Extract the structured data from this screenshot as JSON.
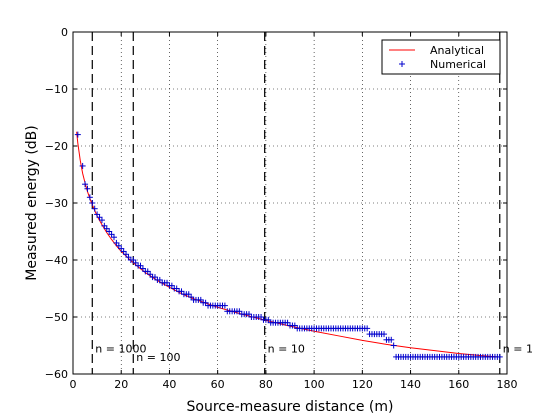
{
  "chart_data": {
    "type": "line",
    "xlabel": "Source-measure distance (m)",
    "ylabel": "Measured energy (dB)",
    "xlim": [
      0,
      180
    ],
    "ylim": [
      -60,
      0
    ],
    "x_ticks": [
      0,
      20,
      40,
      60,
      80,
      100,
      120,
      140,
      160,
      180
    ],
    "y_ticks": [
      0,
      -10,
      -20,
      -30,
      -40,
      -50,
      -60
    ],
    "x_tick_labels": [
      "0",
      "20",
      "40",
      "60",
      "80",
      "100",
      "120",
      "140",
      "160",
      "180"
    ],
    "y_tick_labels": [
      "0",
      "−10",
      "−20",
      "−30",
      "−40",
      "−50",
      "−60"
    ],
    "grid": true,
    "legend_position": "top-right",
    "series": [
      {
        "name": "Analytical",
        "style": "line",
        "color": "#ff0000",
        "x": [
          1.5,
          2,
          3,
          4,
          5,
          6,
          7,
          8,
          10,
          12,
          14,
          16,
          18,
          20,
          25,
          30,
          35,
          40,
          45,
          50,
          60,
          70,
          80,
          90,
          100,
          110,
          120,
          130,
          140,
          150,
          160,
          170,
          176
        ],
        "y": [
          -17.5,
          -19.5,
          -22.5,
          -24.8,
          -26.5,
          -28,
          -29.2,
          -30.3,
          -32.3,
          -33.8,
          -35.2,
          -36.4,
          -37.5,
          -38.5,
          -40.5,
          -42.2,
          -43.6,
          -44.8,
          -45.9,
          -46.8,
          -48.3,
          -49.5,
          -50.6,
          -51.6,
          -52.5,
          -53.3,
          -54.1,
          -54.8,
          -55.4,
          -55.9,
          -56.4,
          -56.8,
          -57
        ]
      },
      {
        "name": "Numerical",
        "style": "marker",
        "marker": "+",
        "color": "#0000cc",
        "x": [
          2,
          4,
          5,
          6,
          7,
          8,
          9,
          10,
          11,
          12,
          13,
          14,
          15,
          16,
          17,
          18,
          19,
          20,
          21,
          22,
          23,
          24,
          25,
          26,
          27,
          28,
          29,
          30,
          31,
          32,
          33,
          34,
          35,
          36,
          37,
          38,
          39,
          40,
          41,
          42,
          43,
          44,
          45,
          46,
          47,
          48,
          49,
          50,
          51,
          52,
          53,
          54,
          55,
          56,
          57,
          58,
          59,
          60,
          61,
          62,
          63,
          64,
          65,
          66,
          67,
          68,
          69,
          70,
          71,
          72,
          73,
          74,
          75,
          76,
          77,
          78,
          79,
          80,
          81,
          82,
          83,
          84,
          85,
          86,
          87,
          88,
          89,
          90,
          91,
          92,
          93,
          94,
          95,
          96,
          97,
          98,
          99,
          100,
          101,
          102,
          103,
          104,
          105,
          106,
          107,
          108,
          109,
          110,
          111,
          112,
          113,
          114,
          115,
          116,
          117,
          118,
          119,
          120,
          121,
          122,
          123,
          124,
          125,
          126,
          127,
          128,
          129,
          130,
          131,
          132,
          133,
          134,
          135,
          136,
          137,
          138,
          139,
          140,
          141,
          142,
          143,
          144,
          145,
          146,
          147,
          148,
          149,
          150,
          151,
          152,
          153,
          154,
          155,
          156,
          157,
          158,
          159,
          160,
          161,
          162,
          163,
          164,
          165,
          166,
          167,
          168,
          169,
          170,
          171,
          172,
          173,
          174,
          175,
          176,
          177
        ],
        "y": [
          -18,
          -23.5,
          -26.7,
          -27.5,
          -29,
          -30,
          -31,
          -32,
          -32.5,
          -33,
          -34,
          -34.5,
          -35,
          -35.5,
          -36,
          -37,
          -37.5,
          -38,
          -38.5,
          -39,
          -39.5,
          -40,
          -40,
          -40.5,
          -41,
          -41,
          -41.5,
          -42,
          -42,
          -42.5,
          -43,
          -43,
          -43.5,
          -43.5,
          -44,
          -44,
          -44,
          -44.5,
          -44.5,
          -45,
          -45,
          -45.5,
          -45.5,
          -46,
          -46,
          -46,
          -46.5,
          -47,
          -47,
          -47,
          -47,
          -47.5,
          -47.5,
          -48,
          -48,
          -48,
          -48,
          -48,
          -48,
          -48,
          -48,
          -49,
          -49,
          -49,
          -49,
          -49,
          -49,
          -49.5,
          -49.5,
          -49.5,
          -49.5,
          -50,
          -50,
          -50,
          -50,
          -50,
          -50.5,
          -50.5,
          -50.5,
          -51,
          -51,
          -51,
          -51,
          -51,
          -51,
          -51,
          -51,
          -51.5,
          -51.5,
          -51.5,
          -52,
          -52,
          -52,
          -52,
          -52,
          -52,
          -52,
          -52,
          -52,
          -52,
          -52,
          -52,
          -52,
          -52,
          -52,
          -52,
          -52,
          -52,
          -52,
          -52,
          -52,
          -52,
          -52,
          -52,
          -52,
          -52,
          -52,
          -52,
          -52,
          -52,
          -53,
          -53,
          -53,
          -53,
          -53,
          -53,
          -53,
          -54,
          -54,
          -54,
          -55,
          -57,
          -57,
          -57,
          -57,
          -57,
          -57,
          -57,
          -57,
          -57,
          -57,
          -57,
          -57,
          -57,
          -57,
          -57,
          -57,
          -57,
          -57,
          -57,
          -57,
          -57,
          -57,
          -57,
          -57,
          -57,
          -57,
          -57,
          -57,
          -57,
          -57,
          -57,
          -57,
          -57,
          -57,
          -57,
          -57,
          -57,
          -57,
          -57,
          -57,
          -57,
          -57,
          -57,
          -57
        ]
      }
    ],
    "vlines": [
      {
        "x": 8,
        "label": "n = 1000",
        "label_y": -55.5
      },
      {
        "x": 25,
        "label": "n = 100",
        "label_y": -57
      },
      {
        "x": 79.5,
        "label": "n = 10",
        "label_y": -55.5
      },
      {
        "x": 177,
        "label": "n = 1",
        "label_y": -55.5
      }
    ]
  }
}
